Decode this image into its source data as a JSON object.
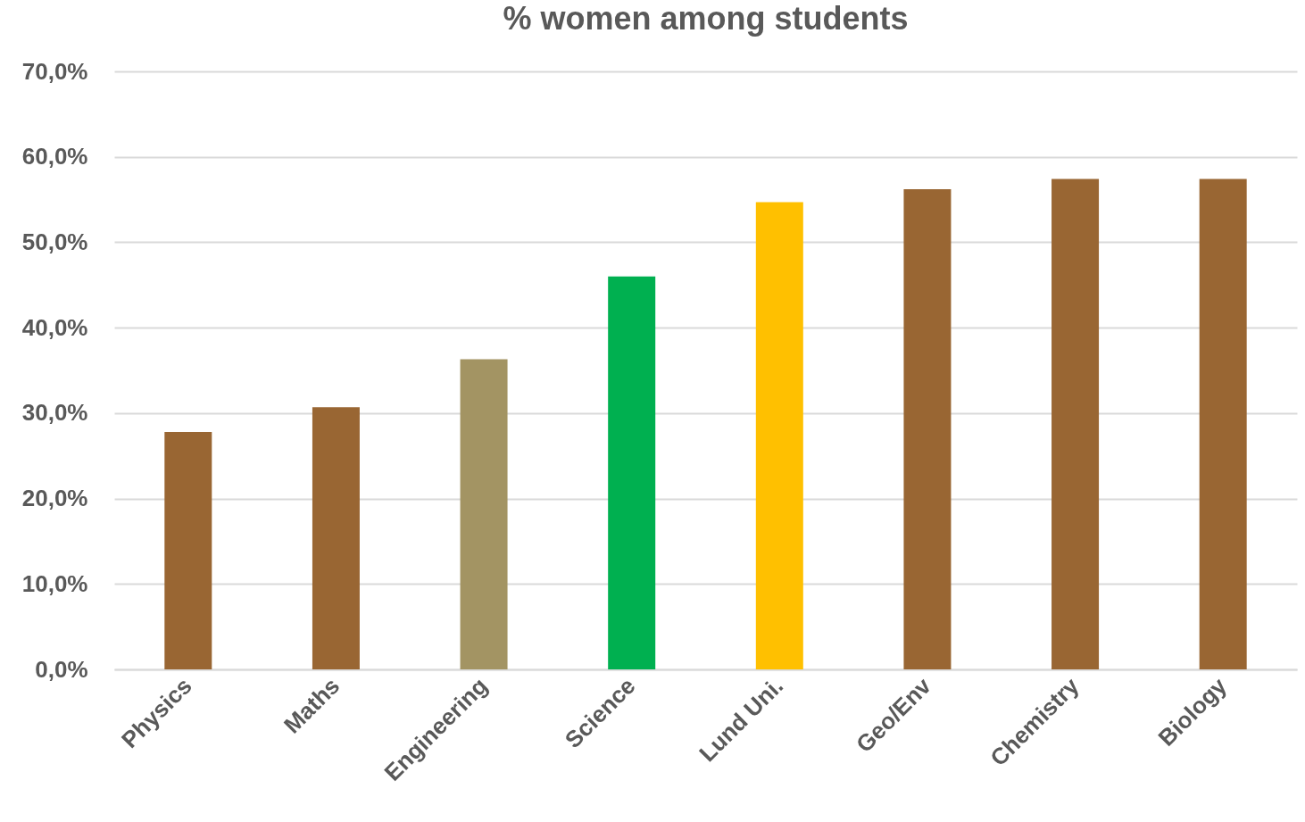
{
  "chart_data": {
    "type": "bar",
    "title": "% women among students",
    "categories": [
      "Physics",
      "Maths",
      "Engineering",
      "Science",
      "Lund Uni.",
      "Geo/Env",
      "Chemistry",
      "Biology"
    ],
    "values": [
      27.8,
      30.7,
      36.3,
      46.0,
      54.7,
      56.2,
      57.4,
      57.4
    ],
    "colors": [
      "#996633",
      "#996633",
      "#a39463",
      "#00b050",
      "#ffc000",
      "#996633",
      "#996633",
      "#996633"
    ],
    "ylim": [
      0,
      70
    ],
    "yticks": [
      {
        "value": 0,
        "label": "0,0%"
      },
      {
        "value": 10,
        "label": "10,0%"
      },
      {
        "value": 20,
        "label": "20,0%"
      },
      {
        "value": 30,
        "label": "30,0%"
      },
      {
        "value": 40,
        "label": "40,0%"
      },
      {
        "value": 50,
        "label": "50,0%"
      },
      {
        "value": 60,
        "label": "60,0%"
      },
      {
        "value": 70,
        "label": "70,0%"
      }
    ],
    "grid": "y"
  }
}
